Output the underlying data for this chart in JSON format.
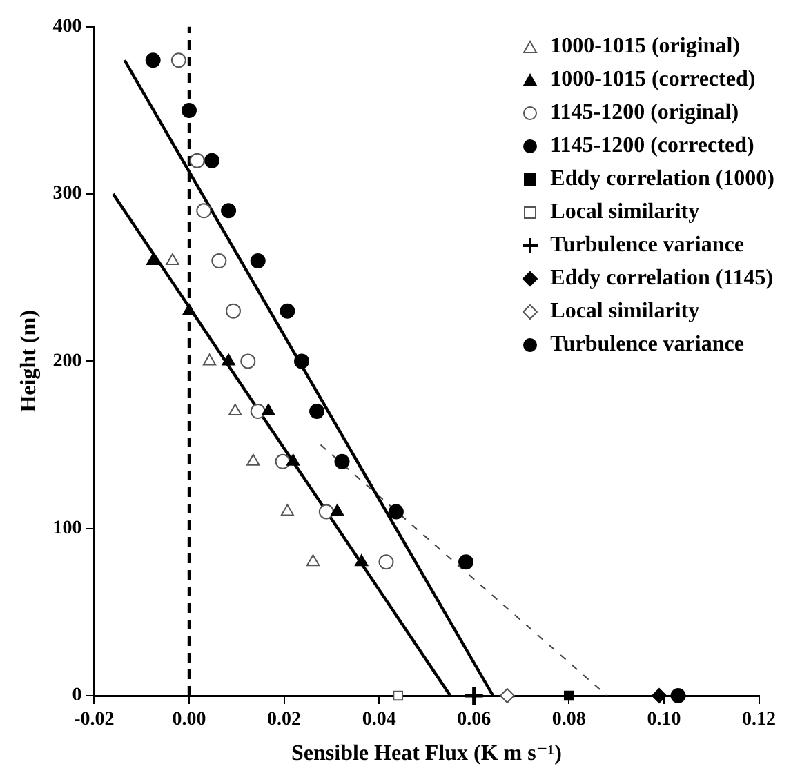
{
  "chart_data": {
    "type": "scatter",
    "xlabel": "Sensible Heat Flux (K m s⁻¹)",
    "ylabel": "Height (m)",
    "xlim": [
      -0.02,
      0.12
    ],
    "ylim": [
      0,
      400
    ],
    "xticks": [
      {
        "value": -0.02,
        "label": "-0.02"
      },
      {
        "value": 0,
        "label": "0.00"
      },
      {
        "value": 0.02,
        "label": "0.02"
      },
      {
        "value": 0.04,
        "label": "0.04"
      },
      {
        "value": 0.06,
        "label": "0.06"
      },
      {
        "value": 0.08,
        "label": "0.08"
      },
      {
        "value": 0.1,
        "label": "0.10"
      },
      {
        "value": 0.12,
        "label": "0.12"
      }
    ],
    "yticks": [
      0,
      100,
      200,
      300,
      400
    ],
    "grid": false,
    "legend": "top right",
    "ref_lines": [
      {
        "axis": "x",
        "value": 0,
        "color": "#000000",
        "line_style": "dashed"
      }
    ],
    "series": [
      {
        "name": "1000-1015 (original)",
        "color": "#555555",
        "marker": "triangle-open",
        "x": [
          -0.0035,
          0.0043,
          0.0097,
          0.0135,
          0.0207,
          0.0261
        ],
        "values": [
          260,
          200,
          170,
          140,
          110,
          80
        ]
      },
      {
        "name": "1000-1015 (corrected)",
        "color": "#000000",
        "marker": "triangle",
        "x": [
          -0.0076,
          0,
          0.0083,
          0.0167,
          0.0219,
          0.0312,
          0.0363
        ],
        "values": [
          260,
          230,
          200,
          170,
          140,
          110,
          80
        ]
      },
      {
        "name": "1145-1200 (original)",
        "color": "#555555",
        "marker": "circle-open",
        "x": [
          -0.0022,
          0.0017,
          0.0031,
          0.0063,
          0.0093,
          0.0124,
          0.0145,
          0.0197,
          0.0289,
          0.0415
        ],
        "values": [
          380,
          320,
          290,
          260,
          230,
          200,
          170,
          140,
          110,
          80
        ]
      },
      {
        "name": "1145-1200 (corrected)",
        "color": "#000000",
        "marker": "circle",
        "x": [
          -0.0076,
          0,
          0.0048,
          0.0083,
          0.0145,
          0.0207,
          0.0237,
          0.0269,
          0.0322,
          0.0436,
          0.0583
        ],
        "values": [
          380,
          350,
          320,
          290,
          260,
          230,
          200,
          170,
          140,
          110,
          80
        ]
      },
      {
        "name": "Eddy correlation (1000)",
        "color": "#000000",
        "marker": "square",
        "x": [
          0.08
        ],
        "values": [
          0
        ]
      },
      {
        "name": "Local similarity",
        "color": "#555555",
        "marker": "square-open",
        "x": [
          0.044
        ],
        "values": [
          0
        ]
      },
      {
        "name": "Turbulence variance",
        "color": "#000000",
        "marker": "cross",
        "x": [
          0.06
        ],
        "values": [
          0
        ]
      },
      {
        "name": "Eddy correlation (1145)",
        "color": "#000000",
        "marker": "diamond",
        "x": [
          0.099
        ],
        "values": [
          0
        ]
      },
      {
        "name": "Local similarity",
        "color": "#555555",
        "marker": "diamond-open",
        "x": [
          0.067
        ],
        "values": [
          0
        ]
      },
      {
        "name": "Turbulence variance",
        "color": "#000000",
        "marker": "circle",
        "x": [
          0.103
        ],
        "values": [
          0
        ]
      },
      {
        "type": "line",
        "color": "#000000",
        "line_style": "solid",
        "marker": "none",
        "x": [
          -0.016,
          0.055
        ],
        "values": [
          300,
          0
        ]
      },
      {
        "type": "line",
        "color": "#000000",
        "line_style": "solid",
        "marker": "none",
        "x": [
          -0.0136,
          0.064
        ],
        "values": [
          380,
          0
        ]
      },
      {
        "type": "line",
        "color": "#444444",
        "line_style": "dotted",
        "marker": "none",
        "x": [
          0.0277,
          0.088
        ],
        "values": [
          150,
          0
        ]
      }
    ]
  }
}
